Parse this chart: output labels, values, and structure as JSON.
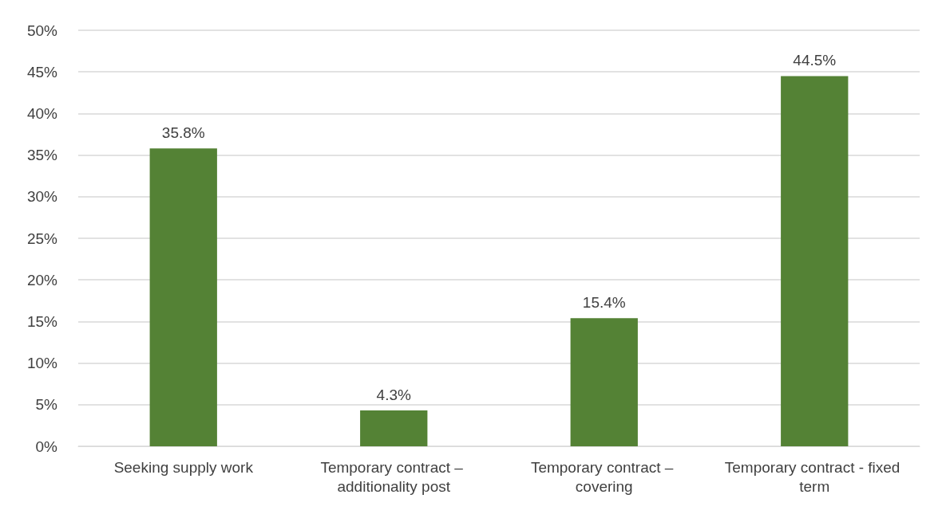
{
  "chart_data": {
    "type": "bar",
    "categories": [
      "Seeking supply work",
      "Temporary contract – additionality post",
      "Temporary contract – covering",
      "Temporary contract - fixed term"
    ],
    "values": [
      35.8,
      4.3,
      15.4,
      44.5
    ],
    "value_labels": [
      "35.8%",
      "4.3%",
      "15.4%",
      "44.5%"
    ],
    "color": "#548235",
    "ylim": [
      0,
      50
    ],
    "yticks": [
      {
        "value": 0,
        "label": "0%"
      },
      {
        "value": 5,
        "label": "5%"
      },
      {
        "value": 10,
        "label": "10%"
      },
      {
        "value": 15,
        "label": "15%"
      },
      {
        "value": 20,
        "label": "20%"
      },
      {
        "value": 25,
        "label": "25%"
      },
      {
        "value": 30,
        "label": "30%"
      },
      {
        "value": 35,
        "label": "35%"
      },
      {
        "value": 40,
        "label": "40%"
      },
      {
        "value": 45,
        "label": "45%"
      },
      {
        "value": 50,
        "label": "50%"
      }
    ],
    "grid": "y"
  }
}
